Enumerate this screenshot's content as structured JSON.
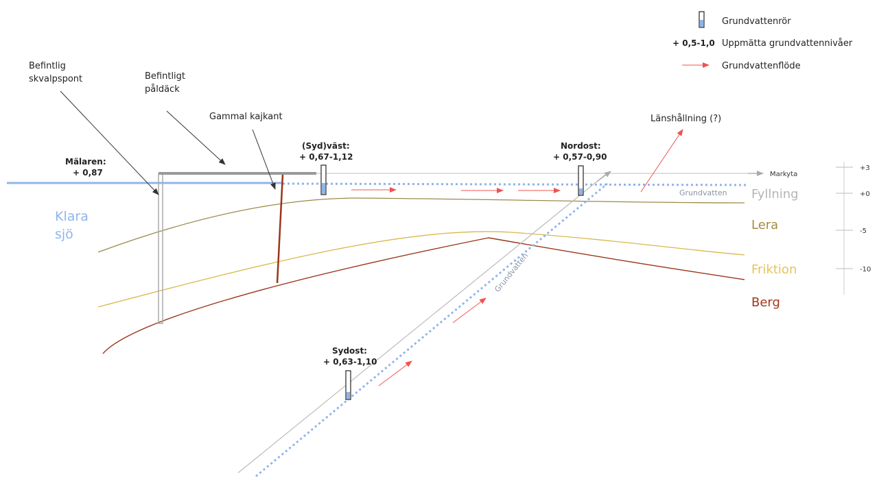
{
  "legend": {
    "tube_label": "Grundvattenrör",
    "level_sample": "+ 0,5-1,0",
    "level_label": "Uppmätta grundvattennivåer",
    "flow_label": "Grundvattenflöde"
  },
  "annotations": {
    "skvalpspont": [
      "Befintlig",
      "skvalpspont"
    ],
    "paldack": [
      "Befintligt",
      "påldäck"
    ],
    "kajkant": "Gammal kajkant",
    "lanshallning": "Länshållning (?)",
    "markyta": "Markyta",
    "grundvatten_top": "Grundvatten",
    "grundvatten_diag": "Grundvatten"
  },
  "lake": {
    "name_lines": [
      "Klara",
      "sjö"
    ],
    "level_title": "Mälaren:",
    "level_value": "+ 0,87"
  },
  "measurements": {
    "sydvast": {
      "title": "(Syd)väst:",
      "value": "+ 0,67-1,12"
    },
    "nordost": {
      "title": "Nordost:",
      "value": "+ 0,57-0,90"
    },
    "sydost": {
      "title": "Sydost:",
      "value": "+ 0,63-1,10"
    }
  },
  "layers": [
    {
      "name": "Fyllning",
      "color": "#b5b5b5"
    },
    {
      "name": "Lera",
      "color": "#a58a3c"
    },
    {
      "name": "Friktion",
      "color": "#e3c45a"
    },
    {
      "name": "Berg",
      "color": "#a3361a"
    }
  ],
  "scale_ticks": [
    "+3",
    "+0",
    "-5",
    "-10"
  ],
  "colors": {
    "water": "#8fb5ea",
    "flow_arrow": "#ef5350",
    "fill_line": "#9a8a4a",
    "friction_line": "#d8b84a",
    "rock_line": "#9a3418",
    "structure": "#aaaaaa"
  }
}
